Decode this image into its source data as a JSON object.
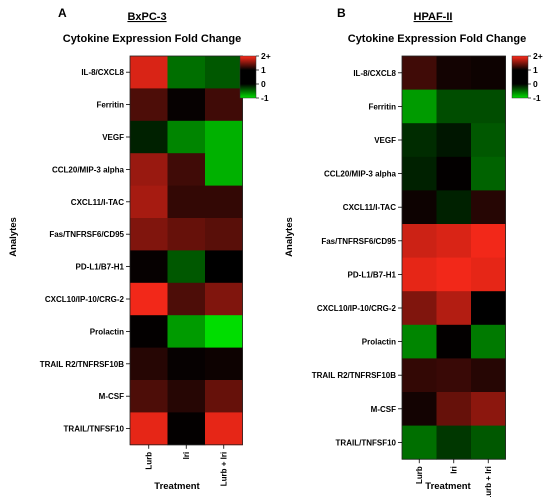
{
  "colorscale": {
    "low": "#00dd00",
    "mid": "#000000",
    "high": "#ff2a1a",
    "min": -1,
    "max": 2,
    "ticks": [
      {
        "value": 2,
        "label": "2+"
      },
      {
        "value": 1,
        "label": "1"
      },
      {
        "value": 0,
        "label": "0"
      },
      {
        "value": -1,
        "label": "-1"
      }
    ]
  },
  "chart_data": [
    {
      "type": "heatmap",
      "panel": "A",
      "cell_line": "BxPC-3",
      "title": "Cytokine Expression Fold Change",
      "xlabel": "Treatment",
      "ylabel": "Analytes",
      "x": [
        "Lurb",
        "Iri",
        "Lurb + Iri"
      ],
      "y": [
        "IL-8/CXCL8",
        "Ferritin",
        "VEGF",
        "CCL20/MIP-3 alpha",
        "CXCL11/I-TAC",
        "Fas/TNFRSF6/CD95",
        "PD-L1/B7-H1",
        "CXCL10/IP-10/CRG-2",
        "Prolactin",
        "TRAIL R2/TNFRSF10B",
        "M-CSF",
        "TRAIL/TNFSF10"
      ],
      "values": [
        [
          1.7,
          -0.5,
          -0.4
        ],
        [
          0.6,
          0.05,
          0.5
        ],
        [
          -0.15,
          -0.6,
          -0.8
        ],
        [
          1.2,
          0.5,
          -0.8
        ],
        [
          1.3,
          0.4,
          0.4
        ],
        [
          1.0,
          0.8,
          0.7
        ],
        [
          0.05,
          -0.4,
          0.0
        ],
        [
          1.9,
          0.6,
          1.0
        ],
        [
          0.02,
          -0.7,
          -1.0
        ],
        [
          0.3,
          0.05,
          0.1
        ],
        [
          0.6,
          0.3,
          0.8
        ],
        [
          1.8,
          0.02,
          1.8
        ]
      ]
    },
    {
      "type": "heatmap",
      "panel": "B",
      "cell_line": "HPAF-II",
      "title": "Cytokine Expression Fold Change",
      "xlabel": "Treatment",
      "ylabel": "Analytes",
      "x": [
        "Lurb",
        "Iri",
        "Lurb + Iri"
      ],
      "y": [
        "IL-8/CXCL8",
        "Ferritin",
        "VEGF",
        "CCL20/MIP-3 alpha",
        "CXCL11/I-TAC",
        "Fas/TNFRSF6/CD95",
        "PD-L1/B7-H1",
        "CXCL10/IP-10/CRG-2",
        "Prolactin",
        "TRAIL R2/TNFRSF10B",
        "M-CSF",
        "TRAIL/TNFSF10"
      ],
      "values": [
        [
          0.5,
          0.15,
          0.1
        ],
        [
          -0.7,
          -0.35,
          -0.35
        ],
        [
          -0.2,
          -0.1,
          -0.4
        ],
        [
          -0.15,
          0.02,
          -0.45
        ],
        [
          0.1,
          -0.15,
          0.3
        ],
        [
          1.6,
          1.7,
          1.9
        ],
        [
          1.8,
          1.9,
          1.8
        ],
        [
          1.0,
          1.4,
          0.0
        ],
        [
          -0.6,
          0.02,
          -0.55
        ],
        [
          0.4,
          0.45,
          0.3
        ],
        [
          0.15,
          0.8,
          1.1
        ],
        [
          -0.5,
          -0.25,
          -0.4
        ]
      ]
    }
  ]
}
